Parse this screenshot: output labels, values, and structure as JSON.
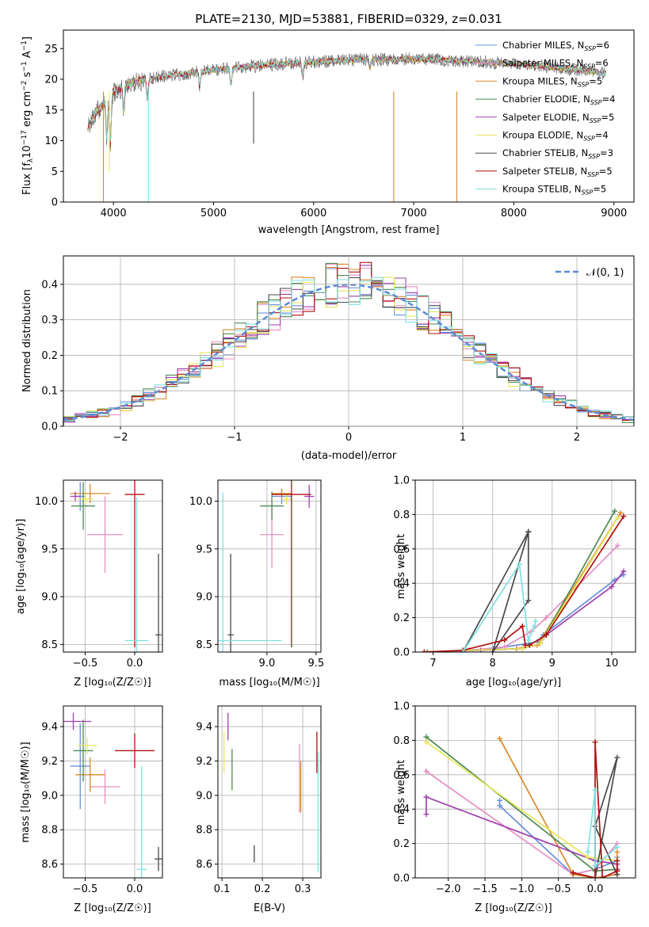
{
  "colors": [
    "#6a8fdc",
    "#e58fc2",
    "#d98a2c",
    "#4e8a52",
    "#a040b0",
    "#e6e65a",
    "#4a4a4a",
    "#b01010",
    "#80e0e0"
  ],
  "chart_data": [
    {
      "type": "line",
      "id": "spectrum",
      "title": "PLATE=2130, MJD=53881, FIBERID=0329, z=0.031",
      "xlabel": "wavelength [Angstrom, rest frame]",
      "ylabel_main": "Flux [f",
      "ylabel_sub1": "λ",
      "ylabel_mid": "10",
      "ylabel_sup1": "−17",
      "ylabel_rest": " erg cm",
      "ylabel_sup2": "−2",
      "ylabel_rest2": " s",
      "ylabel_sup3": "−1",
      "ylabel_rest3": " A",
      "ylabel_sup4": "−1",
      "ylabel_end": "]",
      "xlim": [
        3500,
        9200
      ],
      "ylim": [
        0,
        28
      ],
      "xticks": [
        4000,
        5000,
        6000,
        7000,
        8000,
        9000
      ],
      "yticks": [
        0,
        5,
        10,
        15,
        20,
        25
      ],
      "legend_position": "top-right",
      "legend": [
        {
          "pre": "Chabrier MILES, N",
          "sub": "SSP",
          "post": "=6"
        },
        {
          "pre": "Salpeter MILES, N",
          "sub": "SSP",
          "post": "=6"
        },
        {
          "pre": "Kroupa MILES, N",
          "sub": "SSP",
          "post": "=5"
        },
        {
          "pre": "Chabrier ELODIE, N",
          "sub": "SSP",
          "post": "=4"
        },
        {
          "pre": "Salpeter ELODIE, N",
          "sub": "SSP",
          "post": "=5"
        },
        {
          "pre": "Kroupa ELODIE, N",
          "sub": "SSP",
          "post": "=4"
        },
        {
          "pre": "Chabrier STELIB, N",
          "sub": "SSP",
          "post": "=3"
        },
        {
          "pre": "Salpeter STELIB, N",
          "sub": "SSP",
          "post": "=5"
        },
        {
          "pre": "Kroupa STELIB, N",
          "sub": "SSP",
          "post": "=5"
        }
      ],
      "continuum": [
        [
          3750,
          12
        ],
        [
          3800,
          14
        ],
        [
          3900,
          16
        ],
        [
          4000,
          18
        ],
        [
          4200,
          19.5
        ],
        [
          4500,
          20.5
        ],
        [
          5000,
          21.5
        ],
        [
          5500,
          22.3
        ],
        [
          6000,
          22.8
        ],
        [
          6500,
          23.2
        ],
        [
          7000,
          23.3
        ],
        [
          7500,
          23
        ],
        [
          8000,
          22.5
        ],
        [
          8500,
          21.8
        ],
        [
          8900,
          21
        ]
      ],
      "absorption": [
        [
          3934,
          6
        ],
        [
          3969,
          8
        ],
        [
          4102,
          4
        ],
        [
          4340,
          3
        ],
        [
          4861,
          2.5
        ],
        [
          5175,
          2.5
        ],
        [
          5890,
          2
        ],
        [
          6563,
          1.5
        ]
      ],
      "dropouts": [
        [
          3900,
          0,
          2
        ],
        [
          3960,
          5,
          1
        ],
        [
          4350,
          0,
          8
        ],
        [
          5400,
          9.5,
          6
        ],
        [
          6800,
          0,
          2
        ],
        [
          7430,
          0,
          3
        ]
      ]
    },
    {
      "type": "histogram",
      "id": "residuals",
      "xlabel": "(data-model)/error",
      "ylabel": "Normed distribution",
      "xlim": [
        -2.5,
        2.5
      ],
      "ylim": [
        0,
        0.48
      ],
      "xticks": [
        -2,
        -1,
        0,
        1,
        2
      ],
      "xtick_labels": [
        "−2",
        "−1",
        "0",
        "1",
        "2"
      ],
      "yticks": [
        0,
        0.1,
        0.2,
        0.3,
        0.4
      ],
      "ytick_labels": [
        "0.0",
        "0.1",
        "0.2",
        "0.3",
        "0.4"
      ],
      "legend_position": "top-right",
      "legend_label": "𝒩(0, 1)",
      "gaussian_color": "#5b8ad6",
      "bin_width": 0.1
    },
    {
      "type": "scatter",
      "id": "age-vs-z",
      "xlabel": "Z [log₁₀(Z/Z☉)]",
      "ylabel": "age  [log₁₀(age/yr)]",
      "xlim": [
        -0.72,
        0.28
      ],
      "ylim": [
        8.42,
        10.22
      ],
      "xticks": [
        -0.5,
        0.0
      ],
      "xtick_labels": [
        "−0.5",
        "0.0"
      ],
      "yticks": [
        8.5,
        9.0,
        9.5,
        10.0
      ],
      "ytick_labels": [
        "8.5",
        "9.0",
        "9.5",
        "10.0"
      ],
      "points": [
        {
          "x": -0.55,
          "y": 10.05,
          "xerr": 0.05,
          "yerr": 0.15,
          "c": 0
        },
        {
          "x": -0.3,
          "y": 9.65,
          "xerr": 0.18,
          "yerr": 0.4,
          "c": 1
        },
        {
          "x": -0.45,
          "y": 10.08,
          "xerr": 0.2,
          "yerr": 0.1,
          "c": 2
        },
        {
          "x": -0.52,
          "y": 9.95,
          "xerr": 0.12,
          "yerr": 0.25,
          "c": 3
        },
        {
          "x": -0.6,
          "y": 10.05,
          "xerr": 0.05,
          "yerr": 0.05,
          "c": 4
        },
        {
          "x": -0.5,
          "y": 10.02,
          "xerr": 0.08,
          "yerr": 0.05,
          "c": 5
        },
        {
          "x": 0.24,
          "y": 8.6,
          "xerr": 0.03,
          "yerr": 0.85,
          "c": 6
        },
        {
          "x": 0.0,
          "y": 10.07,
          "xerr": 0.1,
          "yerr": 1.6,
          "c": 7
        },
        {
          "x": 0.02,
          "y": 8.54,
          "xerr": 0.12,
          "yerr": 1.5,
          "c": 8
        }
      ]
    },
    {
      "type": "scatter",
      "id": "age-vs-mass",
      "xlabel": "mass [log₁₀(M/M☉)]",
      "xlim": [
        8.5,
        9.55
      ],
      "ylim": [
        8.42,
        10.22
      ],
      "xticks": [
        9.0,
        9.5
      ],
      "xtick_labels": [
        "9.0",
        "9.5"
      ],
      "yticks": [
        8.5,
        9.0,
        9.5,
        10.0
      ],
      "ytick_labels": [
        "8.5",
        "9.0",
        "9.5",
        "10.0"
      ],
      "points": [
        {
          "x": 9.15,
          "y": 10.05,
          "xerr": 0.1,
          "yerr": 0.08,
          "c": 0
        },
        {
          "x": 9.05,
          "y": 9.65,
          "xerr": 0.12,
          "yerr": 0.35,
          "c": 1
        },
        {
          "x": 9.15,
          "y": 10.08,
          "xerr": 0.1,
          "yerr": 0.05,
          "c": 2
        },
        {
          "x": 9.05,
          "y": 9.95,
          "xerr": 0.12,
          "yerr": 0.15,
          "c": 3
        },
        {
          "x": 9.43,
          "y": 10.05,
          "xerr": 0.05,
          "yerr": 0.12,
          "c": 4
        },
        {
          "x": 9.2,
          "y": 10.02,
          "xerr": 0.05,
          "yerr": 0.05,
          "c": 5
        },
        {
          "x": 8.63,
          "y": 8.6,
          "xerr": 0.03,
          "yerr": 0.85,
          "c": 6
        },
        {
          "x": 9.25,
          "y": 10.07,
          "xerr": 0.2,
          "yerr": 1.6,
          "c": 7
        },
        {
          "x": 8.55,
          "y": 8.54,
          "xerr": 0.6,
          "yerr": 1.55,
          "c": 8
        }
      ]
    },
    {
      "type": "line",
      "id": "weight-vs-age",
      "xlabel": "age  [log₁₀(age/yr)]",
      "ylabel": "mass weight",
      "xlim": [
        6.7,
        10.4
      ],
      "ylim": [
        0,
        1.0
      ],
      "xticks": [
        7,
        8,
        9,
        10
      ],
      "xtick_labels": [
        "7",
        "8",
        "9",
        "10"
      ],
      "yticks": [
        0,
        0.2,
        0.4,
        0.6,
        0.8,
        1.0
      ],
      "ytick_labels": [
        "0.0",
        "0.2",
        "0.4",
        "0.6",
        "0.8",
        "1.0"
      ],
      "series": [
        {
          "c": 0,
          "x": [
            6.85,
            7.5,
            8.0,
            8.6,
            8.75,
            8.85,
            10.05,
            10.2
          ],
          "y": [
            0.0,
            0.01,
            0.02,
            0.05,
            0.06,
            0.1,
            0.42,
            0.45
          ]
        },
        {
          "c": 1,
          "x": [
            6.85,
            7.6,
            8.2,
            8.65,
            8.9,
            10.1
          ],
          "y": [
            0.0,
            0.01,
            0.03,
            0.12,
            0.2,
            0.62
          ]
        },
        {
          "c": 2,
          "x": [
            6.85,
            7.6,
            8.4,
            8.75,
            10.15
          ],
          "y": [
            0.0,
            0.01,
            0.02,
            0.04,
            0.81
          ]
        },
        {
          "c": 3,
          "x": [
            6.9,
            7.6,
            8.5,
            8.8,
            10.05
          ],
          "y": [
            0.0,
            0.01,
            0.02,
            0.05,
            0.82
          ]
        },
        {
          "c": 4,
          "x": [
            6.85,
            7.8,
            8.5,
            8.8,
            8.9,
            10.0,
            10.2
          ],
          "y": [
            0.0,
            0.01,
            0.02,
            0.05,
            0.1,
            0.38,
            0.47
          ]
        },
        {
          "c": 5,
          "x": [
            6.85,
            7.6,
            8.5,
            8.8,
            10.1
          ],
          "y": [
            0.0,
            0.01,
            0.02,
            0.05,
            0.78
          ]
        },
        {
          "c": 6,
          "x": [
            7.5,
            8.6,
            8.6,
            8.0,
            8.6
          ],
          "y": [
            0.0,
            0.7,
            0.3,
            0.0,
            0.7
          ]
        },
        {
          "c": 7,
          "x": [
            6.85,
            7.5,
            8.2,
            8.5,
            8.55,
            8.62,
            8.9,
            10.2
          ],
          "y": [
            0.0,
            0.01,
            0.07,
            0.15,
            0.04,
            0.04,
            0.1,
            0.79
          ]
        },
        {
          "c": 8,
          "x": [
            7.5,
            8.45,
            8.6,
            8.7,
            8.72
          ],
          "y": [
            0.0,
            0.51,
            0.07,
            0.15,
            0.18
          ]
        }
      ]
    },
    {
      "type": "scatter",
      "id": "mass-vs-z",
      "xlabel": "Z [log₁₀(Z/Z☉)]",
      "ylabel": "mass [log₁₀(M/M☉)]",
      "xlim": [
        -0.72,
        0.28
      ],
      "ylim": [
        8.52,
        9.52
      ],
      "xticks": [
        -0.5,
        0.0
      ],
      "xtick_labels": [
        "−0.5",
        "0.0"
      ],
      "yticks": [
        8.6,
        8.8,
        9.0,
        9.2,
        9.4
      ],
      "ytick_labels": [
        "8.6",
        "8.8",
        "9.0",
        "9.2",
        "9.4"
      ],
      "points": [
        {
          "x": -0.55,
          "y": 9.17,
          "xerr": 0.1,
          "yerr": 0.25,
          "c": 0
        },
        {
          "x": -0.3,
          "y": 9.05,
          "xerr": 0.15,
          "yerr": 0.1,
          "c": 1
        },
        {
          "x": -0.45,
          "y": 9.12,
          "xerr": 0.15,
          "yerr": 0.1,
          "c": 2
        },
        {
          "x": -0.52,
          "y": 9.26,
          "xerr": 0.1,
          "yerr": 0.18,
          "c": 3
        },
        {
          "x": -0.62,
          "y": 9.43,
          "xerr": 0.18,
          "yerr": 0.05,
          "c": 4
        },
        {
          "x": -0.48,
          "y": 9.29,
          "xerr": 0.1,
          "yerr": 0.05,
          "c": 5
        },
        {
          "x": 0.24,
          "y": 8.63,
          "xerr": 0.04,
          "yerr": 0.07,
          "c": 6
        },
        {
          "x": 0.0,
          "y": 9.26,
          "xerr": 0.2,
          "yerr": 0.1,
          "c": 7
        },
        {
          "x": 0.07,
          "y": 8.57,
          "xerr": 0.05,
          "yerr": 0.6,
          "c": 8
        }
      ]
    },
    {
      "type": "scatter",
      "id": "mass-vs-ebv",
      "xlabel": "E(B-V)",
      "xlim": [
        0.09,
        0.345
      ],
      "ylim": [
        8.52,
        9.52
      ],
      "xticks": [
        0.1,
        0.2,
        0.3
      ],
      "xtick_labels": [
        "0.1",
        "0.2",
        "0.3"
      ],
      "yticks": [
        8.6,
        8.8,
        9.0,
        9.2,
        9.4
      ],
      "ytick_labels": [
        "8.6",
        "8.8",
        "9.0",
        "9.2",
        "9.4"
      ],
      "points": [
        {
          "x": 0.105,
          "y": 9.25,
          "yerr": 0.12,
          "c": 5
        },
        {
          "x": 0.115,
          "y": 9.4,
          "yerr": 0.08,
          "c": 4
        },
        {
          "x": 0.125,
          "y": 9.15,
          "yerr": 0.12,
          "c": 3
        },
        {
          "x": 0.18,
          "y": 8.66,
          "yerr": 0.05,
          "c": 6
        },
        {
          "x": 0.292,
          "y": 9.1,
          "yerr": 0.2,
          "c": 1
        },
        {
          "x": 0.295,
          "y": 9.05,
          "yerr": 0.15,
          "c": 2
        },
        {
          "x": 0.335,
          "y": 9.25,
          "yerr": 0.12,
          "c": 7
        },
        {
          "x": 0.338,
          "y": 8.9,
          "yerr": 0.35,
          "c": 8
        }
      ]
    },
    {
      "type": "line",
      "id": "weight-vs-z",
      "xlabel": "Z [log₁₀(Z/Z☉)]",
      "ylabel": "mass weight",
      "xlim": [
        -2.45,
        0.55
      ],
      "ylim": [
        0,
        1.0
      ],
      "xticks": [
        -2.0,
        -1.5,
        -1.0,
        -0.5,
        0.0
      ],
      "xtick_labels": [
        "−2.0",
        "−1.5",
        "−1.0",
        "−0.5",
        "0.0"
      ],
      "yticks": [
        0,
        0.2,
        0.4,
        0.6,
        0.8,
        1.0
      ],
      "ytick_labels": [
        "0.0",
        "0.2",
        "0.4",
        "0.6",
        "0.8",
        "1.0"
      ],
      "series": [
        {
          "c": 0,
          "x": [
            -1.3,
            -1.3,
            -0.3,
            0.0,
            0.3,
            0.3
          ],
          "y": [
            0.45,
            0.42,
            0.02,
            0.05,
            0.1,
            0.12
          ]
        },
        {
          "c": 1,
          "x": [
            -2.3,
            -2.3,
            -0.3,
            0.0,
            0.3
          ],
          "y": [
            0.62,
            0.62,
            0.02,
            0.05,
            0.2
          ]
        },
        {
          "c": 2,
          "x": [
            -1.3,
            -0.3,
            0.0,
            0.3,
            0.3
          ],
          "y": [
            0.81,
            0.02,
            0.0,
            0.02,
            0.15
          ]
        },
        {
          "c": 3,
          "x": [
            -2.3,
            0.0,
            0.3
          ],
          "y": [
            0.82,
            0.04,
            0.05
          ]
        },
        {
          "c": 4,
          "x": [
            -2.3,
            -2.3,
            0.0,
            0.3,
            0.3
          ],
          "y": [
            0.37,
            0.47,
            0.1,
            0.08,
            0.05
          ]
        },
        {
          "c": 5,
          "x": [
            -2.3,
            -0.1,
            0.3
          ],
          "y": [
            0.79,
            0.12,
            0.1
          ]
        },
        {
          "c": 6,
          "x": [
            0.0,
            0.3,
            0.0,
            0.3
          ],
          "y": [
            0.0,
            0.7,
            0.3,
            0.02
          ]
        },
        {
          "c": 7,
          "x": [
            -0.3,
            0.0,
            0.0,
            0.1,
            0.3,
            0.3
          ],
          "y": [
            0.03,
            0.0,
            0.79,
            0.0,
            0.04,
            0.1
          ]
        },
        {
          "c": 8,
          "x": [
            -0.1,
            0.0,
            0.0,
            0.3
          ],
          "y": [
            0.15,
            0.51,
            0.07,
            0.18
          ]
        }
      ]
    }
  ]
}
